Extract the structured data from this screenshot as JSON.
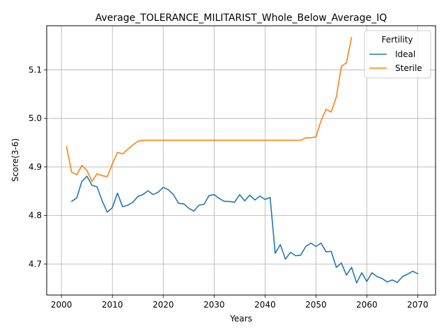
{
  "chart_data": {
    "type": "line",
    "title": "Average_TOLERANCE_MILITARIST_Whole_Below_Average_IQ",
    "xlabel": "Years",
    "ylabel": "Score(3-6)",
    "xlim": [
      1997.1,
      2073.5
    ],
    "ylim": [
      4.636,
      5.191
    ],
    "xticks": [
      2000,
      2010,
      2020,
      2030,
      2040,
      2050,
      2060,
      2070
    ],
    "yticks": [
      4.7,
      4.8,
      4.9,
      5.0,
      5.1
    ],
    "ytick_labels": [
      "4.7",
      "4.8",
      "4.9",
      "5.0",
      "5.1"
    ],
    "grid": true,
    "legend": {
      "title": "Fertility",
      "placement": "top-right"
    },
    "series": [
      {
        "name": "Ideal",
        "color": "#1f77b4",
        "x": [
          2002,
          2003,
          2004,
          2005,
          2006,
          2007,
          2008,
          2009,
          2010,
          2011,
          2012,
          2013,
          2014,
          2015,
          2016,
          2017,
          2018,
          2019,
          2020,
          2021,
          2022,
          2023,
          2024,
          2025,
          2026,
          2027,
          2028,
          2029,
          2030,
          2031,
          2032,
          2033,
          2034,
          2035,
          2036,
          2037,
          2038,
          2039,
          2040,
          2041,
          2042,
          2043,
          2044,
          2045,
          2046,
          2047,
          2048,
          2049,
          2050,
          2051,
          2052,
          2053,
          2054,
          2055,
          2056,
          2057,
          2058,
          2059,
          2060,
          2061,
          2062,
          2063,
          2064,
          2065,
          2066,
          2067,
          2068,
          2069,
          2070
        ],
        "values": [
          4.829,
          4.836,
          4.87,
          4.881,
          4.862,
          4.859,
          4.83,
          4.807,
          4.816,
          4.846,
          4.818,
          4.821,
          4.827,
          4.839,
          4.843,
          4.851,
          4.843,
          4.848,
          4.858,
          4.853,
          4.843,
          4.825,
          4.824,
          4.815,
          4.809,
          4.821,
          4.823,
          4.841,
          4.843,
          4.835,
          4.829,
          4.829,
          4.827,
          4.843,
          4.83,
          4.842,
          4.832,
          4.84,
          4.833,
          4.837,
          4.722,
          4.74,
          4.71,
          4.724,
          4.717,
          4.718,
          4.736,
          4.743,
          4.736,
          4.743,
          4.725,
          4.726,
          4.693,
          4.702,
          4.677,
          4.693,
          4.661,
          4.682,
          4.664,
          4.682,
          4.674,
          4.67,
          4.663,
          4.667,
          4.662,
          4.674,
          4.679,
          4.685,
          4.68
        ]
      },
      {
        "name": "Sterile",
        "color": "#ff7f0e",
        "x": [
          2001,
          2002,
          2003,
          2004,
          2005,
          2006,
          2007,
          2008,
          2009,
          2010,
          2011,
          2012,
          2013,
          2014,
          2015,
          2016,
          2017,
          2018,
          2019,
          2020,
          2021,
          2022,
          2023,
          2024,
          2025,
          2026,
          2027,
          2028,
          2029,
          2030,
          2031,
          2032,
          2033,
          2034,
          2035,
          2036,
          2037,
          2038,
          2039,
          2040,
          2041,
          2042,
          2043,
          2044,
          2045,
          2046,
          2047,
          2048,
          2049,
          2050,
          2051,
          2052,
          2053,
          2054,
          2055,
          2056,
          2057
        ],
        "values": [
          4.942,
          4.889,
          4.884,
          4.903,
          4.893,
          4.87,
          4.886,
          4.882,
          4.88,
          4.906,
          4.93,
          4.927,
          4.936,
          4.945,
          4.953,
          4.955,
          4.955,
          4.955,
          4.955,
          4.955,
          4.955,
          4.955,
          4.955,
          4.955,
          4.955,
          4.955,
          4.955,
          4.955,
          4.955,
          4.955,
          4.955,
          4.955,
          4.955,
          4.955,
          4.955,
          4.955,
          4.955,
          4.955,
          4.955,
          4.955,
          4.955,
          4.955,
          4.955,
          4.955,
          4.955,
          4.955,
          4.955,
          4.96,
          4.96,
          4.962,
          4.995,
          5.019,
          5.013,
          5.044,
          5.107,
          5.115,
          5.167
        ]
      }
    ]
  }
}
